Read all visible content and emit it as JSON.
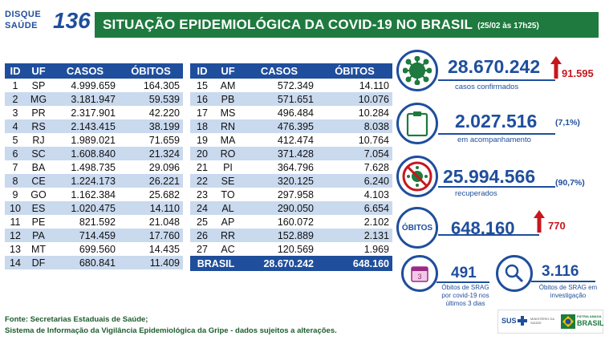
{
  "logo": {
    "line1": "DISQUE",
    "line2": "SAÚDE",
    "number": "136"
  },
  "header": {
    "title": "SITUAÇÃO EPIDEMIOLÓGICA DA COVID-19 NO BRASIL",
    "date": "(25/02 às 17h25)"
  },
  "table": {
    "headers": [
      "ID",
      "UF",
      "CASOS",
      "ÓBITOS"
    ],
    "left_rows": [
      [
        "1",
        "SP",
        "4.999.659",
        "164.305"
      ],
      [
        "2",
        "MG",
        "3.181.947",
        "59.539"
      ],
      [
        "3",
        "PR",
        "2.317.901",
        "42.220"
      ],
      [
        "4",
        "RS",
        "2.143.415",
        "38.199"
      ],
      [
        "5",
        "RJ",
        "1.989.021",
        "71.659"
      ],
      [
        "6",
        "SC",
        "1.608.840",
        "21.324"
      ],
      [
        "7",
        "BA",
        "1.498.735",
        "29.096"
      ],
      [
        "8",
        "CE",
        "1.224.173",
        "26.221"
      ],
      [
        "9",
        "GO",
        "1.162.384",
        "25.682"
      ],
      [
        "10",
        "ES",
        "1.020.475",
        "14.110"
      ],
      [
        "11",
        "PE",
        "821.592",
        "21.048"
      ],
      [
        "12",
        "PA",
        "714.459",
        "17.760"
      ],
      [
        "13",
        "MT",
        "699.560",
        "14.435"
      ],
      [
        "14",
        "DF",
        "680.841",
        "11.409"
      ]
    ],
    "right_rows": [
      [
        "15",
        "AM",
        "572.349",
        "14.110"
      ],
      [
        "16",
        "PB",
        "571.651",
        "10.076"
      ],
      [
        "17",
        "MS",
        "496.484",
        "10.284"
      ],
      [
        "18",
        "RN",
        "476.395",
        "8.038"
      ],
      [
        "19",
        "MA",
        "412.474",
        "10.764"
      ],
      [
        "20",
        "RO",
        "371.428",
        "7.054"
      ],
      [
        "21",
        "PI",
        "364.796",
        "7.628"
      ],
      [
        "22",
        "SE",
        "320.125",
        "6.240"
      ],
      [
        "23",
        "TO",
        "297.958",
        "4.103"
      ],
      [
        "24",
        "AL",
        "290.050",
        "6.654"
      ],
      [
        "25",
        "AP",
        "160.072",
        "2.102"
      ],
      [
        "26",
        "RR",
        "152.889",
        "2.131"
      ],
      [
        "27",
        "AC",
        "120.569",
        "1.969"
      ]
    ],
    "total": {
      "label": "BRASIL",
      "casos": "28.670.242",
      "obitos": "648.160"
    }
  },
  "stats": {
    "confirmed": {
      "value": "28.670.242",
      "label": "casos confirmados",
      "new": "91.595"
    },
    "monitoring": {
      "value": "2.027.516",
      "label": "em acompanhamento",
      "pct": "(7,1%)"
    },
    "recovered": {
      "value": "25.994.566",
      "label": "recuperados",
      "pct": "(90,7%)"
    },
    "deaths": {
      "badge": "ÓBITOS",
      "value": "648.160",
      "new": "770"
    },
    "srag_3days": {
      "value": "491",
      "label": "Óbitos de SRAG por covid-19 nos últimos 3 dias",
      "calendar_number": "3"
    },
    "srag_investigation": {
      "value": "3.116",
      "label": "Óbitos de SRAG em investigação"
    }
  },
  "colors": {
    "green": "#1e7a3e",
    "blue": "#1f4e9c",
    "light_blue": "#c9d9ee",
    "red": "#c8161d"
  },
  "source": {
    "line1": "Fonte: Secretarias Estaduais de Saúde;",
    "line2": "Sistema de Informação da Vigilância Epidemiológica da Gripe - dados sujeitos a alterações."
  },
  "footer_logos": {
    "sus": "SUS",
    "ministry": "MINISTÉRIO DA SAÚDE",
    "slogan": "PÁTRIA AMADA",
    "country": "BRASIL"
  }
}
